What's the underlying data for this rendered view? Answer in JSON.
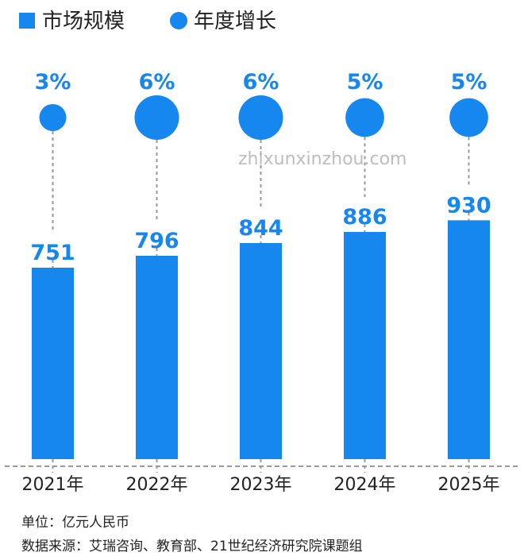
{
  "chart_data": {
    "type": "bar",
    "categories": [
      "2021年",
      "2022年",
      "2023年",
      "2024年",
      "2025年"
    ],
    "series": [
      {
        "name": "市场规模",
        "values": [
          751,
          796,
          844,
          886,
          930
        ]
      },
      {
        "name": "年度增长",
        "values": [
          3,
          6,
          6,
          5,
          5
        ]
      }
    ],
    "value_labels": [
      "751",
      "796",
      "844",
      "886",
      "930"
    ],
    "growth_labels": [
      "3%",
      "6%",
      "6%",
      "5%",
      "5%"
    ],
    "legend_position": "top-left",
    "grid": false
  },
  "colors": {
    "bar": "#1787F0",
    "bubble": "#1787F0",
    "guide": "#9a9a9a"
  },
  "watermark": "zhixunxinzhou.com",
  "footer": {
    "unit": "单位：亿元人民币",
    "source": "数据来源：艾瑞咨询、教育部、21世纪经济研究院课题组"
  }
}
